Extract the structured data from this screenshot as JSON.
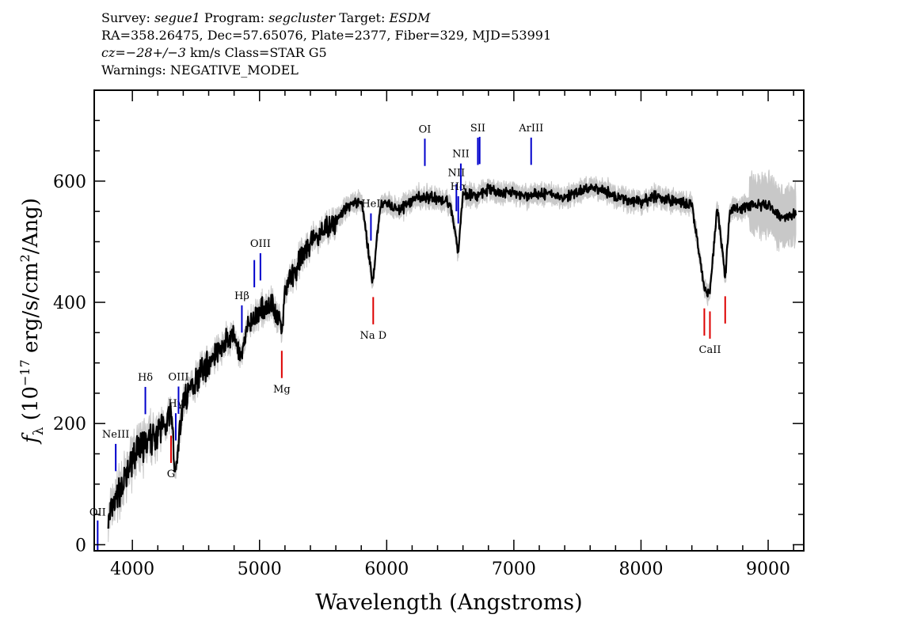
{
  "header": {
    "survey_label": "Survey:",
    "survey": "segue1",
    "program_label": "Program:",
    "program": "segcluster",
    "target_label": "Target:",
    "target": "ESDM",
    "line2": "RA=358.26475, Dec=57.65076, Plate=2377, Fiber=329, MJD=53991",
    "cz": "cz=−28+/−3",
    "cz_units": "km/s Class=STAR G5",
    "warnings": "Warnings: NEGATIVE_MODEL"
  },
  "chart_data": {
    "type": "line",
    "title": "",
    "xlabel": "Wavelength (Angstroms)",
    "ylabel": "f_λ (10^-17 erg/s/cm^2/Ang)",
    "xlim": [
      3700,
      9280
    ],
    "ylim": [
      -10,
      750
    ],
    "x_ticks": [
      4000,
      5000,
      6000,
      7000,
      8000,
      9000
    ],
    "y_ticks": [
      0,
      200,
      400,
      600
    ],
    "colors": {
      "flux": "#000000",
      "error": "#c8c8c8",
      "emission": "#0000cc",
      "absorption": "#dd0000"
    },
    "series": [
      {
        "name": "flux",
        "x": [
          3800,
          3850,
          3900,
          3950,
          4000,
          4050,
          4100,
          4150,
          4200,
          4250,
          4300,
          4340,
          4400,
          4450,
          4500,
          4600,
          4700,
          4800,
          4861,
          4900,
          5000,
          5100,
          5175,
          5200,
          5300,
          5400,
          5500,
          5600,
          5700,
          5800,
          5890,
          5950,
          6000,
          6100,
          6200,
          6300,
          6400,
          6500,
          6563,
          6600,
          6700,
          6800,
          6900,
          7000,
          7100,
          7200,
          7300,
          7400,
          7500,
          7600,
          7700,
          7800,
          7900,
          8000,
          8100,
          8200,
          8300,
          8400,
          8498,
          8542,
          8600,
          8662,
          8700,
          8800,
          8900,
          9000,
          9100,
          9200
        ],
        "values": [
          30,
          60,
          90,
          110,
          140,
          160,
          165,
          175,
          185,
          200,
          220,
          120,
          240,
          255,
          275,
          300,
          330,
          345,
          300,
          360,
          385,
          400,
          350,
          420,
          460,
          500,
          520,
          535,
          560,
          570,
          430,
          560,
          565,
          550,
          570,
          575,
          570,
          565,
          480,
          580,
          575,
          585,
          580,
          582,
          575,
          580,
          578,
          575,
          580,
          590,
          585,
          575,
          570,
          565,
          575,
          570,
          565,
          560,
          420,
          415,
          560,
          440,
          555,
          555,
          560,
          560,
          540,
          545
        ]
      }
    ],
    "line_markers": [
      {
        "label": "OII",
        "x": 3727,
        "type": "emission"
      },
      {
        "label": "NeIII",
        "x": 3869,
        "type": "emission"
      },
      {
        "label": "Hδ",
        "x": 4102,
        "type": "emission"
      },
      {
        "label": "Hγ",
        "x": 4341,
        "type": "emission"
      },
      {
        "label": "OIII",
        "x": 4363,
        "type": "emission"
      },
      {
        "label": "Hβ",
        "x": 4861,
        "type": "emission"
      },
      {
        "label": "OIII",
        "x": 4959,
        "type": "emission"
      },
      {
        "label": "OIII",
        "x": 5007,
        "type": "emission"
      },
      {
        "label": "HeI",
        "x": 5876,
        "type": "emission"
      },
      {
        "label": "OI",
        "x": 6300,
        "type": "emission"
      },
      {
        "label": "NII",
        "x": 6548,
        "type": "emission"
      },
      {
        "label": "Hα",
        "x": 6563,
        "type": "emission"
      },
      {
        "label": "NII",
        "x": 6583,
        "type": "emission"
      },
      {
        "label": "SII",
        "x": 6717,
        "type": "emission"
      },
      {
        "label": "SII",
        "x": 6731,
        "type": "emission"
      },
      {
        "label": "ArIII",
        "x": 7136,
        "type": "emission"
      },
      {
        "label": "G",
        "x": 4304,
        "type": "absorption"
      },
      {
        "label": "Mg",
        "x": 5175,
        "type": "absorption"
      },
      {
        "label": "Na D",
        "x": 5894,
        "type": "absorption"
      },
      {
        "label": "CaII",
        "x": 8498,
        "type": "absorption"
      },
      {
        "label": "CaII",
        "x": 8542,
        "type": "absorption"
      },
      {
        "label": "CaII",
        "x": 8662,
        "type": "absorption"
      }
    ]
  }
}
